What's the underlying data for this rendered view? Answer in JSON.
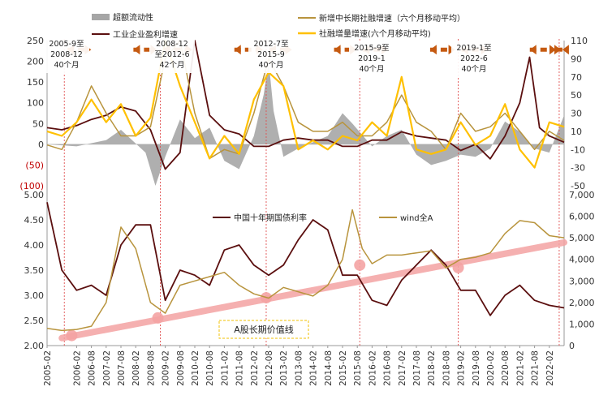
{
  "chart_data": [
    {
      "type": "line",
      "panel": "top",
      "x_range": [
        "2005-02",
        "2022-08"
      ],
      "left_axis": {
        "ylim": [
          -100,
          250
        ],
        "ticks": [
          "250",
          "200",
          "150",
          "100",
          "50",
          "0",
          "(50)",
          "(100)"
        ]
      },
      "right_axis": {
        "ylim": [
          -50,
          110
        ],
        "ticks": [
          "110",
          "90",
          "70",
          "50",
          "30",
          "10",
          "-10",
          "-30",
          "-50"
        ]
      },
      "legend": {
        "excess_liquidity": "超额流动性",
        "industrial_profit": "工业企业盈利增速",
        "mid_long_tsf": "新增中长期社融增速（六个月移动平均）",
        "tsf_stock": "社融增量增速(六个月移动平均)"
      },
      "series": [
        {
          "key": "excess_liquidity",
          "style": "bar",
          "color": "#a6a6a6",
          "axis": "left",
          "points": [
            [
              "2005-02",
              0
            ],
            [
              "2006-02",
              -5
            ],
            [
              "2007-02",
              10
            ],
            [
              "2007-08",
              35
            ],
            [
              "2008-06",
              -20
            ],
            [
              "2008-10",
              -100
            ],
            [
              "2009-02",
              -30
            ],
            [
              "2009-08",
              60
            ],
            [
              "2010-02",
              15
            ],
            [
              "2010-08",
              40
            ],
            [
              "2011-02",
              -40
            ],
            [
              "2011-08",
              -60
            ],
            [
              "2012-02",
              20
            ],
            [
              "2012-06",
              120
            ],
            [
              "2012-08",
              200
            ],
            [
              "2012-10",
              80
            ],
            [
              "2013-02",
              -30
            ],
            [
              "2013-08",
              -10
            ],
            [
              "2014-02",
              5
            ],
            [
              "2014-08",
              20
            ],
            [
              "2015-02",
              75
            ],
            [
              "2015-06",
              50
            ],
            [
              "2016-02",
              -5
            ],
            [
              "2016-08",
              20
            ],
            [
              "2017-02",
              35
            ],
            [
              "2017-08",
              -25
            ],
            [
              "2018-02",
              -50
            ],
            [
              "2018-08",
              -40
            ],
            [
              "2019-02",
              -25
            ],
            [
              "2019-08",
              -30
            ],
            [
              "2020-02",
              -10
            ],
            [
              "2020-08",
              55
            ],
            [
              "2021-02",
              30
            ],
            [
              "2021-08",
              -10
            ],
            [
              "2022-02",
              -20
            ],
            [
              "2022-08",
              70
            ]
          ]
        },
        {
          "key": "industrial_profit",
          "style": "line",
          "color": "#5b0f0f",
          "axis": "left",
          "points": [
            [
              "2005-02",
              40
            ],
            [
              "2005-08",
              35
            ],
            [
              "2006-02",
              45
            ],
            [
              "2006-08",
              60
            ],
            [
              "2007-02",
              70
            ],
            [
              "2007-08",
              90
            ],
            [
              "2008-02",
              80
            ],
            [
              "2008-08",
              35
            ],
            [
              "2009-02",
              -60
            ],
            [
              "2009-08",
              -20
            ],
            [
              "2010-02",
              250
            ],
            [
              "2010-08",
              70
            ],
            [
              "2011-02",
              35
            ],
            [
              "2011-08",
              25
            ],
            [
              "2012-02",
              -5
            ],
            [
              "2012-08",
              -5
            ],
            [
              "2013-02",
              10
            ],
            [
              "2013-08",
              15
            ],
            [
              "2014-02",
              10
            ],
            [
              "2014-08",
              10
            ],
            [
              "2015-02",
              -5
            ],
            [
              "2015-08",
              -5
            ],
            [
              "2016-02",
              10
            ],
            [
              "2016-08",
              10
            ],
            [
              "2017-02",
              30
            ],
            [
              "2017-08",
              20
            ],
            [
              "2018-02",
              15
            ],
            [
              "2018-08",
              10
            ],
            [
              "2019-02",
              -15
            ],
            [
              "2019-08",
              0
            ],
            [
              "2020-02",
              -35
            ],
            [
              "2020-08",
              20
            ],
            [
              "2021-02",
              100
            ],
            [
              "2021-06",
              210
            ],
            [
              "2021-10",
              40
            ],
            [
              "2022-02",
              20
            ],
            [
              "2022-08",
              5
            ]
          ]
        },
        {
          "key": "mid_long_tsf",
          "style": "line",
          "color": "#b8943d",
          "axis": "right",
          "points": [
            [
              "2005-02",
              -5
            ],
            [
              "2005-08",
              -10
            ],
            [
              "2006-02",
              20
            ],
            [
              "2006-08",
              60
            ],
            [
              "2007-02",
              30
            ],
            [
              "2007-08",
              5
            ],
            [
              "2008-02",
              5
            ],
            [
              "2008-08",
              15
            ],
            [
              "2009-02",
              90
            ],
            [
              "2009-08",
              110
            ],
            [
              "2010-02",
              30
            ],
            [
              "2010-08",
              -20
            ],
            [
              "2011-02",
              -10
            ],
            [
              "2011-08",
              -15
            ],
            [
              "2012-02",
              30
            ],
            [
              "2012-08",
              90
            ],
            [
              "2013-02",
              60
            ],
            [
              "2013-08",
              20
            ],
            [
              "2014-02",
              10
            ],
            [
              "2014-08",
              10
            ],
            [
              "2015-02",
              20
            ],
            [
              "2015-08",
              5
            ],
            [
              "2016-02",
              5
            ],
            [
              "2016-08",
              20
            ],
            [
              "2017-02",
              50
            ],
            [
              "2017-08",
              20
            ],
            [
              "2018-02",
              10
            ],
            [
              "2018-08",
              -10
            ],
            [
              "2019-02",
              30
            ],
            [
              "2019-08",
              10
            ],
            [
              "2020-02",
              15
            ],
            [
              "2020-08",
              30
            ],
            [
              "2021-02",
              10
            ],
            [
              "2021-08",
              -10
            ],
            [
              "2022-02",
              10
            ],
            [
              "2022-08",
              0
            ]
          ]
        },
        {
          "key": "tsf_stock",
          "style": "line",
          "color": "#ffc000",
          "axis": "right",
          "points": [
            [
              "2005-02",
              10
            ],
            [
              "2005-08",
              5
            ],
            [
              "2006-02",
              20
            ],
            [
              "2006-08",
              45
            ],
            [
              "2007-02",
              20
            ],
            [
              "2007-08",
              40
            ],
            [
              "2008-02",
              5
            ],
            [
              "2008-08",
              25
            ],
            [
              "2009-02",
              110
            ],
            [
              "2009-08",
              60
            ],
            [
              "2010-02",
              20
            ],
            [
              "2010-08",
              -20
            ],
            [
              "2011-02",
              5
            ],
            [
              "2011-08",
              -15
            ],
            [
              "2012-02",
              45
            ],
            [
              "2012-08",
              75
            ],
            [
              "2013-02",
              60
            ],
            [
              "2013-08",
              -10
            ],
            [
              "2014-02",
              0
            ],
            [
              "2014-08",
              -10
            ],
            [
              "2015-02",
              5
            ],
            [
              "2015-08",
              0
            ],
            [
              "2016-02",
              20
            ],
            [
              "2016-08",
              5
            ],
            [
              "2017-02",
              70
            ],
            [
              "2017-08",
              -10
            ],
            [
              "2018-02",
              -15
            ],
            [
              "2018-08",
              -10
            ],
            [
              "2019-02",
              20
            ],
            [
              "2019-08",
              -5
            ],
            [
              "2020-02",
              5
            ],
            [
              "2020-08",
              40
            ],
            [
              "2021-02",
              -10
            ],
            [
              "2021-08",
              -30
            ],
            [
              "2022-02",
              20
            ],
            [
              "2022-08",
              15
            ]
          ]
        }
      ],
      "annotations": [
        {
          "text": "2005-9至\n2008-12\n40个月"
        },
        {
          "text": "2008-12\n至2012-6\n42个月"
        },
        {
          "text": "2012-7至\n2015-9\n40个月"
        },
        {
          "text": "2015-9至\n2019-1\n40个月"
        },
        {
          "text": "2019-1至\n2022-6\n40个月"
        }
      ]
    },
    {
      "type": "line",
      "panel": "bottom",
      "left_axis": {
        "ylim": [
          2.0,
          5.0
        ],
        "ticks": [
          "5.00",
          "4.50",
          "4.00",
          "3.50",
          "3.00",
          "2.50",
          "2.00"
        ]
      },
      "right_axis": {
        "ylim": [
          0,
          7000
        ],
        "ticks": [
          "7,000",
          "6,000",
          "5,000",
          "4,000",
          "3,000",
          "2,000",
          "1,000",
          "0"
        ]
      },
      "legend": {
        "bond_yield": "中国十年期国债利率",
        "wind_a": "wind全A"
      },
      "series": [
        {
          "key": "bond_yield",
          "color": "#5b0f0f",
          "axis": "left",
          "points": [
            [
              "2005-02",
              4.85
            ],
            [
              "2005-08",
              3.5
            ],
            [
              "2006-02",
              3.1
            ],
            [
              "2006-08",
              3.2
            ],
            [
              "2007-02",
              3.0
            ],
            [
              "2007-08",
              4.0
            ],
            [
              "2008-02",
              4.4
            ],
            [
              "2008-08",
              4.4
            ],
            [
              "2009-02",
              2.9
            ],
            [
              "2009-08",
              3.5
            ],
            [
              "2010-02",
              3.4
            ],
            [
              "2010-08",
              3.2
            ],
            [
              "2011-02",
              3.9
            ],
            [
              "2011-08",
              4.0
            ],
            [
              "2012-02",
              3.6
            ],
            [
              "2012-08",
              3.4
            ],
            [
              "2013-02",
              3.6
            ],
            [
              "2013-08",
              4.1
            ],
            [
              "2014-02",
              4.5
            ],
            [
              "2014-08",
              4.3
            ],
            [
              "2015-02",
              3.4
            ],
            [
              "2015-08",
              3.4
            ],
            [
              "2016-02",
              2.9
            ],
            [
              "2016-08",
              2.8
            ],
            [
              "2017-02",
              3.3
            ],
            [
              "2017-08",
              3.6
            ],
            [
              "2018-02",
              3.9
            ],
            [
              "2018-08",
              3.6
            ],
            [
              "2019-02",
              3.1
            ],
            [
              "2019-08",
              3.1
            ],
            [
              "2020-02",
              2.6
            ],
            [
              "2020-08",
              3.0
            ],
            [
              "2021-02",
              3.2
            ],
            [
              "2021-08",
              2.9
            ],
            [
              "2022-02",
              2.8
            ],
            [
              "2022-08",
              2.75
            ]
          ]
        },
        {
          "key": "wind_a",
          "color": "#b8943d",
          "axis": "right",
          "points": [
            [
              "2005-02",
              800
            ],
            [
              "2005-08",
              700
            ],
            [
              "2006-02",
              750
            ],
            [
              "2006-08",
              900
            ],
            [
              "2007-02",
              2000
            ],
            [
              "2007-08",
              5500
            ],
            [
              "2008-02",
              4500
            ],
            [
              "2008-08",
              2000
            ],
            [
              "2009-02",
              1500
            ],
            [
              "2009-08",
              2800
            ],
            [
              "2010-02",
              3000
            ],
            [
              "2010-08",
              3200
            ],
            [
              "2011-02",
              3400
            ],
            [
              "2011-08",
              2800
            ],
            [
              "2012-02",
              2400
            ],
            [
              "2012-08",
              2200
            ],
            [
              "2013-02",
              2700
            ],
            [
              "2013-08",
              2500
            ],
            [
              "2014-02",
              2300
            ],
            [
              "2014-08",
              2800
            ],
            [
              "2015-02",
              4000
            ],
            [
              "2015-06",
              6300
            ],
            [
              "2015-10",
              4500
            ],
            [
              "2016-02",
              3800
            ],
            [
              "2016-08",
              4200
            ],
            [
              "2017-02",
              4200
            ],
            [
              "2017-08",
              4300
            ],
            [
              "2018-02",
              4400
            ],
            [
              "2018-08",
              3600
            ],
            [
              "2019-02",
              4000
            ],
            [
              "2019-08",
              4100
            ],
            [
              "2020-02",
              4300
            ],
            [
              "2020-08",
              5200
            ],
            [
              "2021-02",
              5800
            ],
            [
              "2021-08",
              5700
            ],
            [
              "2022-02",
              5100
            ],
            [
              "2022-08",
              5000
            ]
          ]
        }
      ],
      "trend_line": {
        "label": "A股长期价值线",
        "color": "#f4a3a3",
        "from": [
          "2005-08",
          2.15
        ],
        "to": [
          "2022-08",
          4.05
        ],
        "markers": [
          [
            "2005-12",
            2.2
          ],
          [
            "2008-11",
            2.55
          ],
          [
            "2012-07",
            2.95
          ],
          [
            "2015-09",
            3.6
          ],
          [
            "2019-01",
            3.55
          ]
        ]
      }
    }
  ],
  "x_tick_labels": [
    "2005-02",
    "2006-02",
    "2006-08",
    "2007-02",
    "2007-08",
    "2008-02",
    "2008-08",
    "2009-02",
    "2009-08",
    "2010-02",
    "2010-08",
    "2011-02",
    "2011-08",
    "2012-02",
    "2012-08",
    "2013-02",
    "2013-08",
    "2014-02",
    "2014-08",
    "2015-02",
    "2015-08",
    "2016-02",
    "2016-08",
    "2017-02",
    "2017-08",
    "2018-02",
    "2018-08",
    "2019-02",
    "2019-08",
    "2020-02",
    "2020-08",
    "2021-02",
    "2021-08",
    "2022-02"
  ],
  "cycle_boundaries": [
    "2005-09",
    "2008-12",
    "2012-07",
    "2015-09",
    "2019-01",
    "2022-06"
  ],
  "colors": {
    "axis_red": "#c00000",
    "divider": "#e05050",
    "arrow": "#c55a11"
  }
}
